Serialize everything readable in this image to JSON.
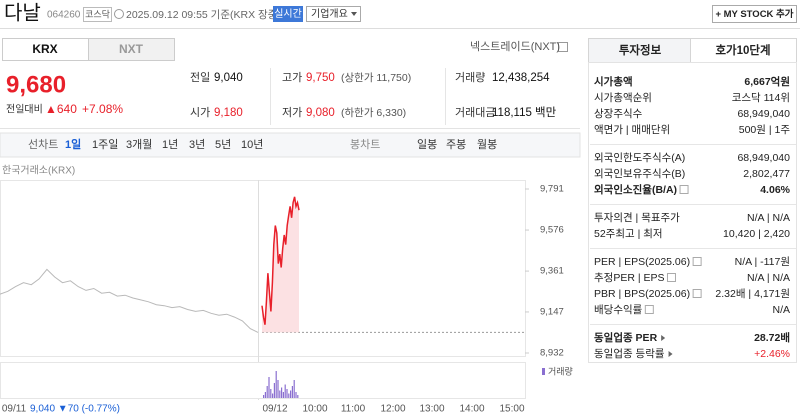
{
  "header": {
    "name": "다날",
    "code": "064260",
    "market": "코스닥",
    "time": "2025.09.12 09:55 기준(KRX 장중)",
    "realtime": "실시간",
    "company_button": "기업개요",
    "mystock_button": "+ MY STOCK 추가"
  },
  "market_tabs": {
    "items": [
      "KRX",
      "NXT"
    ],
    "selected": 0,
    "nxt_link": "넥스트레이드(NXT)"
  },
  "price": {
    "current": "9,680",
    "change_label": "전일대비",
    "change": "▲640",
    "rate": "+7.08%"
  },
  "quote_grid": [
    [
      {
        "label": "전일",
        "value": "9,040"
      },
      {
        "label": "고가",
        "value": "9,750",
        "note": "(상한가 11,750)",
        "red": true
      },
      {
        "label": "거래량",
        "value": "12,438,254"
      }
    ],
    [
      {
        "label": "시가",
        "value": "9,180",
        "red": true
      },
      {
        "label": "저가",
        "value": "9,080",
        "note": "(하한가 6,330)",
        "red": true
      },
      {
        "label": "거래대금",
        "value": "118,115 백만"
      }
    ]
  ],
  "toolbar": {
    "line_chart": [
      "선차트",
      "1일",
      "1주일",
      "3개월",
      "1년",
      "3년",
      "5년",
      "10년"
    ],
    "selected": 1,
    "candle_chart": [
      "봉차트",
      "일봉",
      "주봉",
      "월봉"
    ]
  },
  "chart": {
    "source": "한국거래소(KRX)",
    "volume_label": "거래량",
    "ylim": [
      8932,
      9791
    ],
    "yticks": [
      {
        "value": 9791,
        "label": "9,791"
      },
      {
        "value": 9576,
        "label": "9,576"
      },
      {
        "value": 9361,
        "label": "9,361"
      },
      {
        "value": 9147,
        "label": "9,147"
      },
      {
        "value": 8932,
        "label": "8,932"
      }
    ],
    "baseline": 9040,
    "x_labels": [
      "09/11",
      "09/12",
      "10:00",
      "11:00",
      "12:00",
      "13:00",
      "14:00",
      "15:00"
    ],
    "prev_summary": "9,040 ▼70 (-0.77%)",
    "series": [
      {
        "color": "#b9b9b9",
        "values": [
          9240,
          9255,
          9280,
          9300,
          9290,
          9320,
          9370,
          9330,
          9300,
          9310,
          9280,
          9260,
          9270,
          9245,
          9250,
          9230,
          9235,
          9220,
          9210,
          9200,
          9185,
          9180,
          9170,
          9175,
          9160,
          9150,
          9155,
          9140,
          9130,
          9135,
          9120,
          9100,
          9060,
          9040
        ]
      },
      {
        "color": "#e8202a",
        "values": [
          9180,
          9120,
          9080,
          9200,
          9350,
          9250,
          9150,
          9300,
          9500,
          9600,
          9560,
          9400,
          9450,
          9380,
          9480,
          9550,
          9500,
          9600,
          9650,
          9700,
          9640,
          9720,
          9750,
          9700,
          9720,
          9680
        ]
      }
    ],
    "volume": [
      10,
      20,
      40,
      70,
      30,
      15,
      50,
      90,
      60,
      25,
      35,
      20,
      45,
      30,
      15,
      25,
      40,
      60,
      20,
      10
    ]
  },
  "invest_tabs": [
    "투자정보",
    "호가10단계"
  ],
  "invest_info": [
    [
      {
        "label": "시가총액",
        "value": "6,667억원",
        "bold": true
      },
      {
        "label": "시가총액순위",
        "value": "코스닥 114위"
      },
      {
        "label": "상장주식수",
        "value": "68,949,040"
      },
      {
        "label": "액면가 | 매매단위",
        "value": "500원 | 1주"
      }
    ],
    [
      {
        "label": "외국인한도주식수(A)",
        "value": "68,949,040"
      },
      {
        "label": "외국인보유주식수(B)",
        "value": "2,802,477"
      },
      {
        "label": "외국인소진율(B/A)",
        "value": "4.06%",
        "bold": true,
        "help": true
      }
    ],
    [
      {
        "label": "투자의견 | 목표주가",
        "value": "N/A | N/A"
      },
      {
        "label": "52주최고 | 최저",
        "value": "10,420 | 2,420"
      }
    ],
    [
      {
        "label": "PER | EPS(2025.06)",
        "value": "N/A | -117원",
        "help": true
      },
      {
        "label": "추정PER | EPS",
        "value": "N/A | N/A",
        "help": true
      },
      {
        "label": "PBR | BPS(2025.06)",
        "value": "2.32배 | 4,171원",
        "help": true
      },
      {
        "label": "배당수익률",
        "value": "N/A",
        "help": true
      }
    ],
    [
      {
        "label": "동일업종 PER",
        "value": "28.72배",
        "bold": true,
        "arrow": true
      },
      {
        "label": "동일업종 등락률",
        "value": "+2.46%",
        "red": true,
        "arrow": true
      }
    ]
  ]
}
